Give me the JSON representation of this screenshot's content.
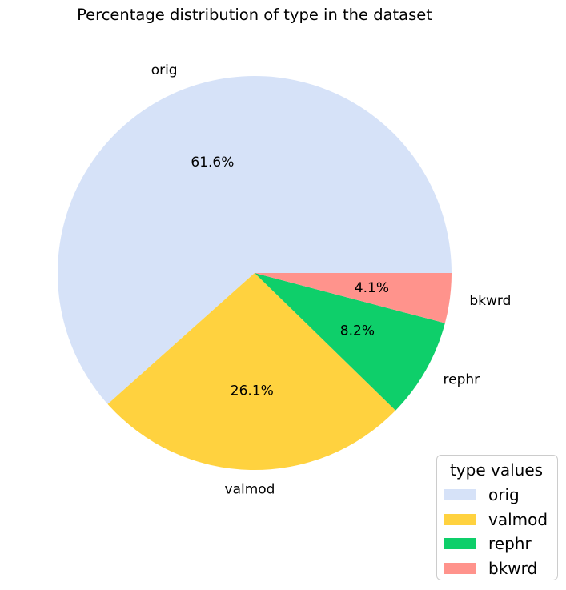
{
  "chart_data": {
    "type": "pie",
    "title": "Percentage distribution of type in the dataset",
    "categories": [
      "orig",
      "valmod",
      "rephr",
      "bkwrd"
    ],
    "values": [
      61.6,
      26.1,
      8.2,
      4.1
    ],
    "value_labels": [
      "61.6%",
      "26.1%",
      "8.2%",
      "4.1%"
    ],
    "colors": [
      "#d6e2f8",
      "#ffd23f",
      "#0ecf6a",
      "#ff938c"
    ],
    "start_angle_deg": 0,
    "direction": "counterclockwise",
    "legend": {
      "title": "type values",
      "placement": "bottom-right",
      "entries": [
        "orig",
        "valmod",
        "rephr",
        "bkwrd"
      ]
    }
  }
}
